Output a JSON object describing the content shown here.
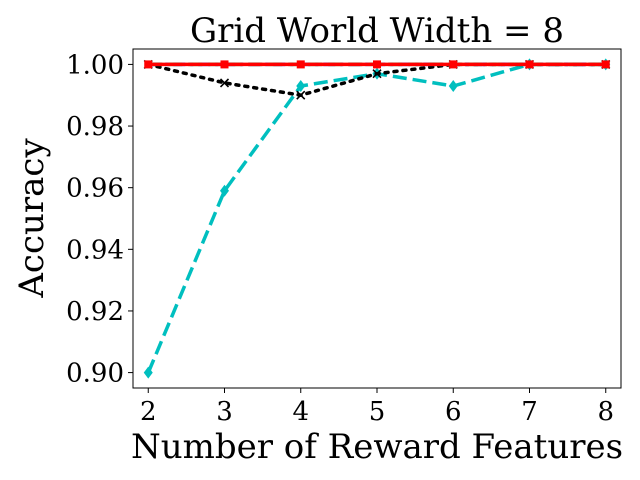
{
  "chart_data": {
    "type": "line",
    "title": "Grid World Width = 8",
    "xlabel": "Number of Reward Features",
    "ylabel": "Accuracy",
    "x": [
      2,
      3,
      4,
      5,
      6,
      7,
      8
    ],
    "xlim": [
      1.8,
      8.2
    ],
    "ylim": [
      0.895,
      1.005
    ],
    "xticks": [
      2,
      3,
      4,
      5,
      6,
      7,
      8
    ],
    "yticks": [
      0.9,
      0.92,
      0.94,
      0.96,
      0.98,
      1.0
    ],
    "ytick_labels": [
      "0.90",
      "0.92",
      "0.94",
      "0.96",
      "0.98",
      "1.00"
    ],
    "grid": false,
    "legend": "none",
    "series": [
      {
        "color": "#00bfbf",
        "style": "dashed",
        "marker": "diamond",
        "values": [
          0.9,
          0.959,
          0.993,
          0.997,
          0.993,
          1.0,
          1.0
        ]
      },
      {
        "color": "#000000",
        "style": "dotted",
        "marker": "x",
        "values": [
          1.0,
          0.994,
          0.99,
          0.997,
          1.0,
          1.0,
          1.0
        ]
      },
      {
        "color": "#0000ff",
        "style": "dashdot",
        "marker": "none",
        "values": [
          1.0,
          1.0,
          1.0,
          1.0,
          1.0,
          1.0,
          1.0
        ]
      },
      {
        "color": "#008000",
        "style": "dashed",
        "marker": "none",
        "values": [
          1.0,
          1.0,
          1.0,
          1.0,
          1.0,
          1.0,
          1.0
        ]
      },
      {
        "color": "#ff0000",
        "style": "solid",
        "marker": "square",
        "values": [
          1.0,
          1.0,
          1.0,
          1.0,
          1.0,
          1.0,
          1.0
        ]
      }
    ]
  }
}
